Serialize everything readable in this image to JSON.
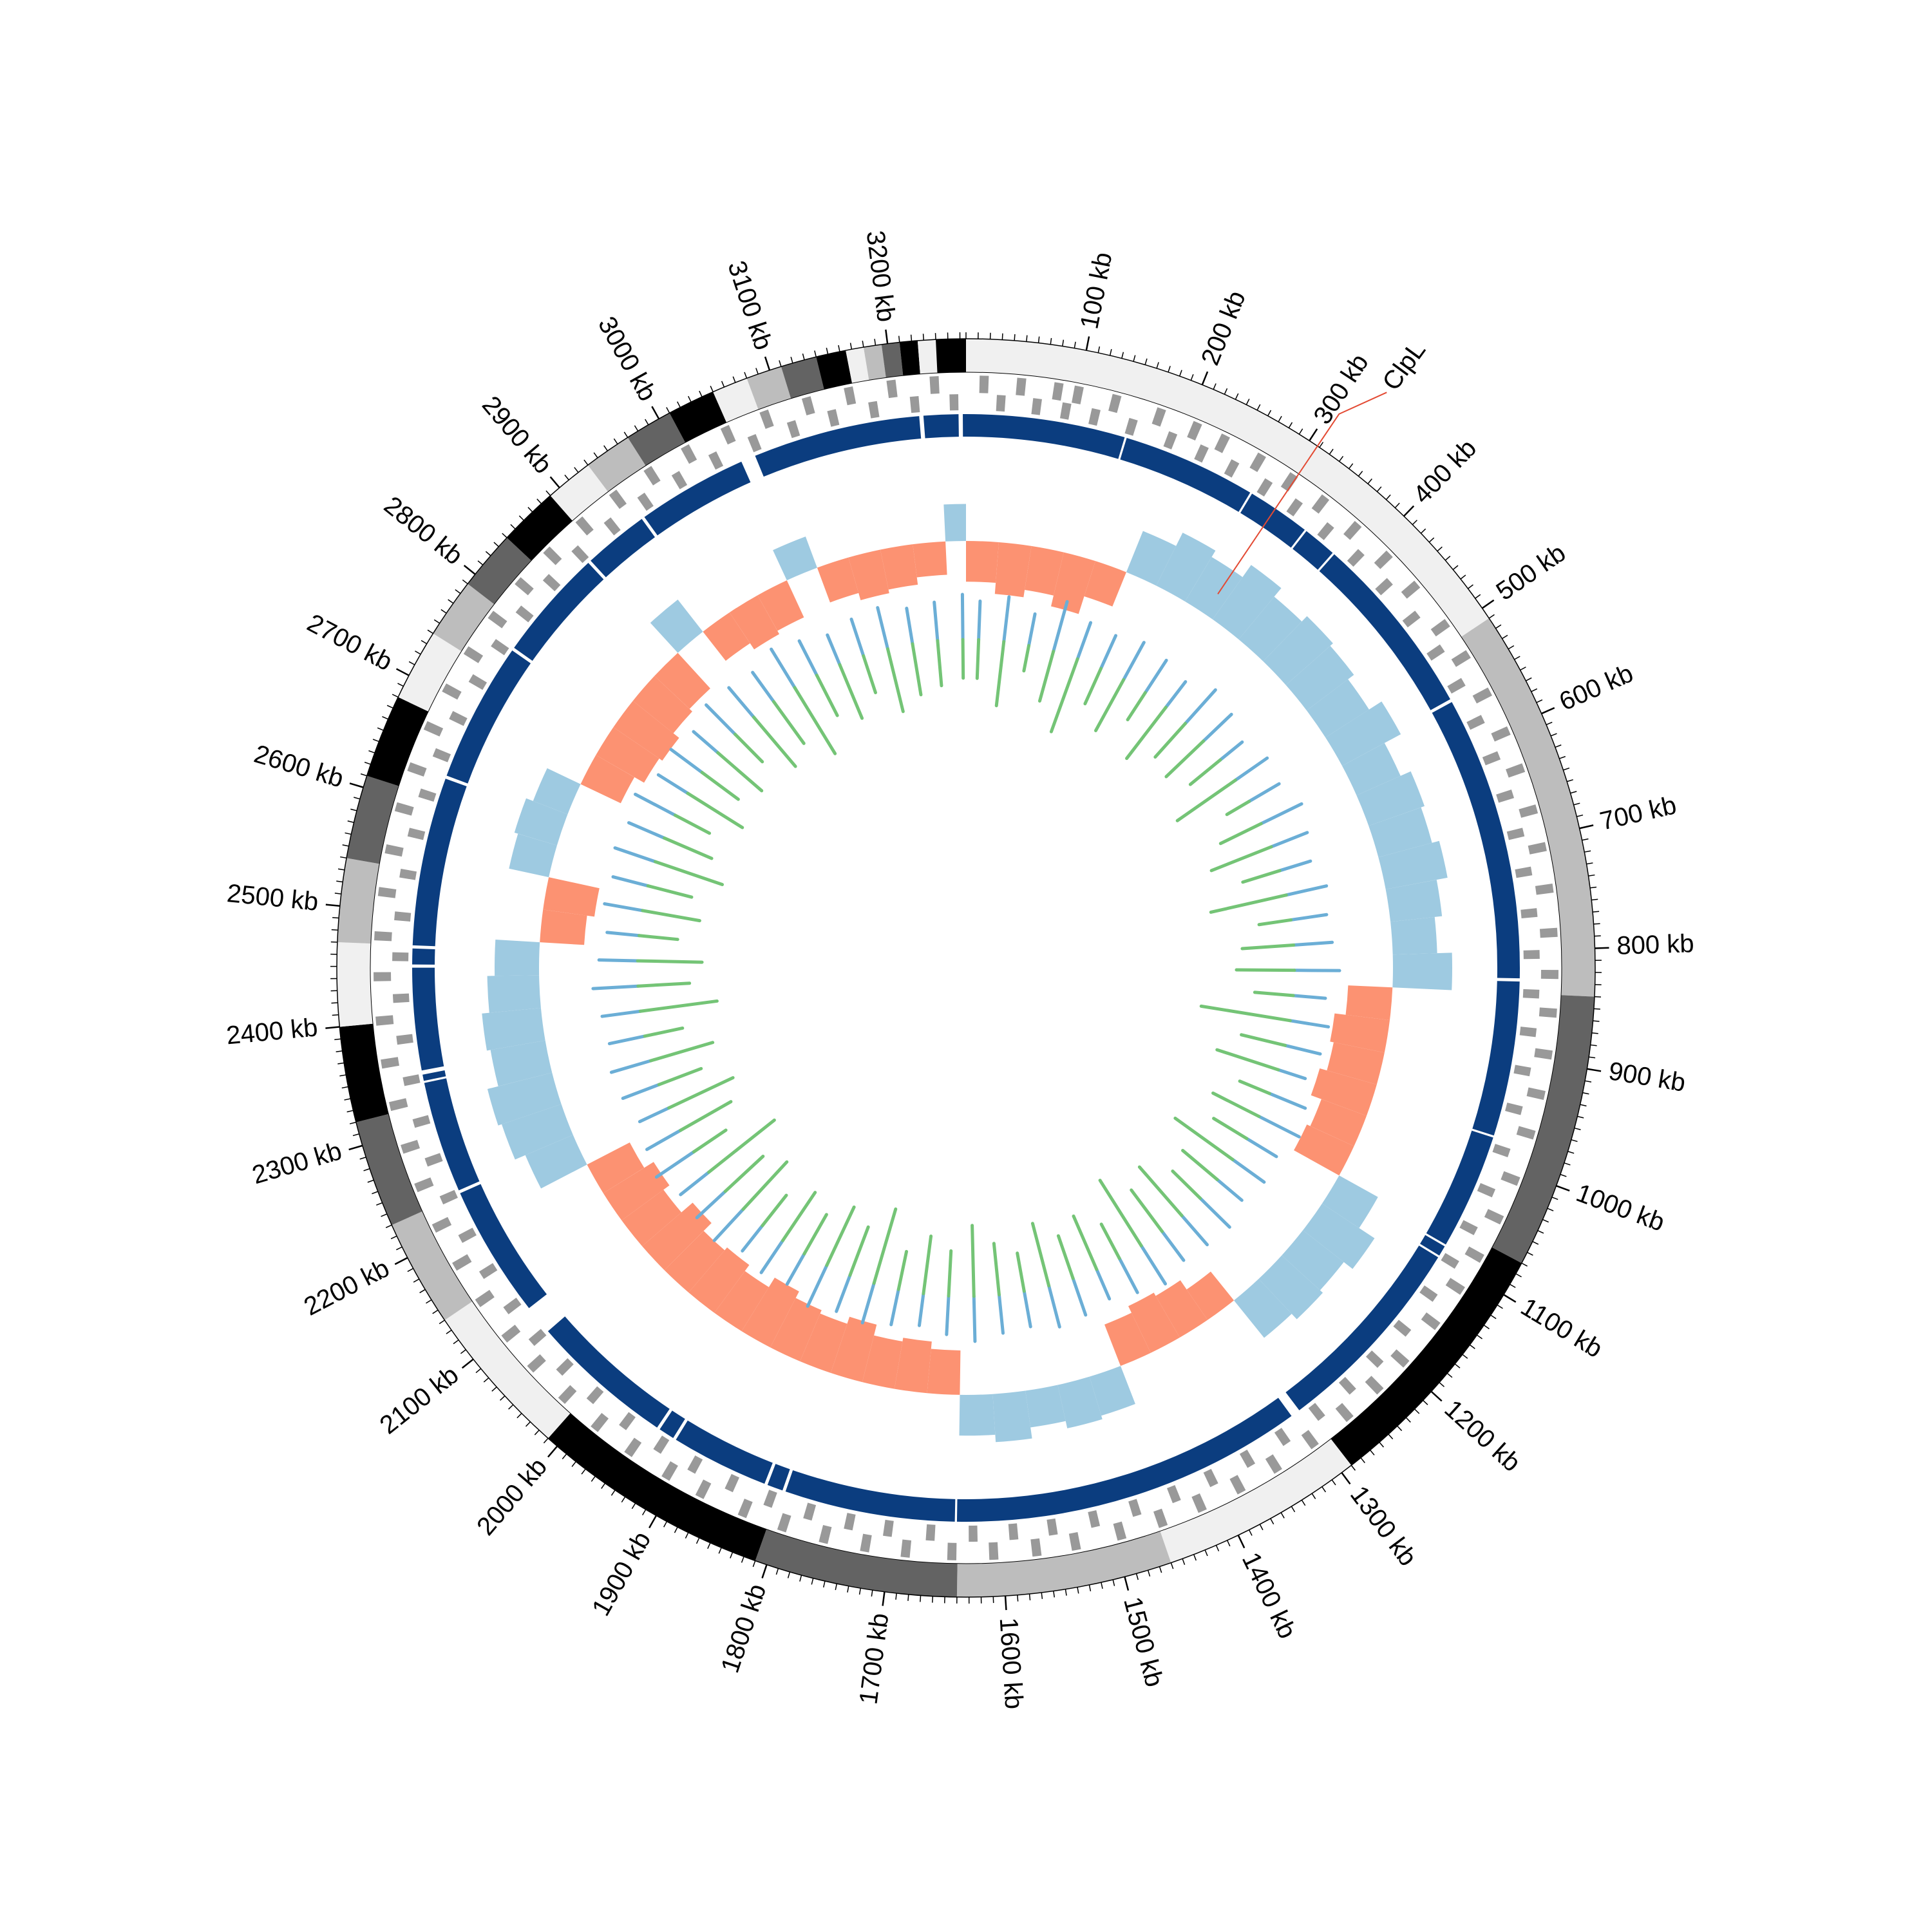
{
  "chart_data": {
    "type": "circos",
    "xlim": [
      0,
      3265
    ],
    "xticks": [
      {
        "value": 100,
        "label": "100 kb"
      },
      {
        "value": 200,
        "label": "200 kb"
      },
      {
        "value": 300,
        "label": "300 kb"
      },
      {
        "value": 400,
        "label": "400 kb"
      },
      {
        "value": 500,
        "label": "500 kb"
      },
      {
        "value": 600,
        "label": "600 kb"
      },
      {
        "value": 700,
        "label": "700 kb"
      },
      {
        "value": 800,
        "label": "800 kb"
      },
      {
        "value": 900,
        "label": "900 kb"
      },
      {
        "value": 1000,
        "label": "1000 kb"
      },
      {
        "value": 1100,
        "label": "1100 kb"
      },
      {
        "value": 1200,
        "label": "1200 kb"
      },
      {
        "value": 1300,
        "label": "1300 kb"
      },
      {
        "value": 1400,
        "label": "1400 kb"
      },
      {
        "value": 1500,
        "label": "1500 kb"
      },
      {
        "value": 1600,
        "label": "1600 kb"
      },
      {
        "value": 1700,
        "label": "1700 kb"
      },
      {
        "value": 1800,
        "label": "1800 kb"
      },
      {
        "value": 1900,
        "label": "1900 kb"
      },
      {
        "value": 2000,
        "label": "2000 kb"
      },
      {
        "value": 2100,
        "label": "2100 kb"
      },
      {
        "value": 2200,
        "label": "2200 kb"
      },
      {
        "value": 2300,
        "label": "2300 kb"
      },
      {
        "value": 2400,
        "label": "2400 kb"
      },
      {
        "value": 2500,
        "label": "2500 kb"
      },
      {
        "value": 2600,
        "label": "2600 kb"
      },
      {
        "value": 2700,
        "label": "2700 kb"
      },
      {
        "value": 2800,
        "label": "2800 kb"
      },
      {
        "value": 2900,
        "label": "2900 kb"
      },
      {
        "value": 3000,
        "label": "3000 kb"
      },
      {
        "value": 3100,
        "label": "3100 kb"
      },
      {
        "value": 3200,
        "label": "3200 kb"
      }
    ],
    "minor_tick_step": 10,
    "bands": [
      {
        "start": 0,
        "end": 510,
        "color": "#f0f0f0"
      },
      {
        "start": 510,
        "end": 840,
        "color": "#bdbdbd"
      },
      {
        "start": 840,
        "end": 1070,
        "color": "#636363"
      },
      {
        "start": 1070,
        "end": 1290,
        "color": "#000000"
      },
      {
        "start": 1290,
        "end": 1460,
        "color": "#f0f0f0"
      },
      {
        "start": 1460,
        "end": 1640,
        "color": "#bdbdbd"
      },
      {
        "start": 1640,
        "end": 1810,
        "color": "#636363"
      },
      {
        "start": 1810,
        "end": 2010,
        "color": "#000000"
      },
      {
        "start": 2010,
        "end": 2140,
        "color": "#f0f0f0"
      },
      {
        "start": 2140,
        "end": 2230,
        "color": "#bdbdbd"
      },
      {
        "start": 2230,
        "end": 2320,
        "color": "#636363"
      },
      {
        "start": 2320,
        "end": 2400,
        "color": "#000000"
      },
      {
        "start": 2400,
        "end": 2470,
        "color": "#f0f0f0"
      },
      {
        "start": 2470,
        "end": 2540,
        "color": "#bdbdbd"
      },
      {
        "start": 2540,
        "end": 2610,
        "color": "#636363"
      },
      {
        "start": 2610,
        "end": 2680,
        "color": "#000000"
      },
      {
        "start": 2680,
        "end": 2740,
        "color": "#f0f0f0"
      },
      {
        "start": 2740,
        "end": 2790,
        "color": "#bdbdbd"
      },
      {
        "start": 2790,
        "end": 2840,
        "color": "#636363"
      },
      {
        "start": 2840,
        "end": 2890,
        "color": "#000000"
      },
      {
        "start": 2890,
        "end": 2930,
        "color": "#f0f0f0"
      },
      {
        "start": 2930,
        "end": 2970,
        "color": "#bdbdbd"
      },
      {
        "start": 2970,
        "end": 3010,
        "color": "#636363"
      },
      {
        "start": 3010,
        "end": 3050,
        "color": "#000000"
      },
      {
        "start": 3050,
        "end": 3080,
        "color": "#f0f0f0"
      },
      {
        "start": 3080,
        "end": 3110,
        "color": "#bdbdbd"
      },
      {
        "start": 3110,
        "end": 3140,
        "color": "#636363"
      },
      {
        "start": 3140,
        "end": 3165,
        "color": "#000000"
      },
      {
        "start": 3165,
        "end": 3180,
        "color": "#f0f0f0"
      },
      {
        "start": 3180,
        "end": 3195,
        "color": "#bdbdbd"
      },
      {
        "start": 3195,
        "end": 3210,
        "color": "#636363"
      },
      {
        "start": 3210,
        "end": 3225,
        "color": "#000000"
      },
      {
        "start": 3225,
        "end": 3240,
        "color": "#f0f0f0"
      },
      {
        "start": 3240,
        "end": 3265,
        "color": "#000000"
      }
    ],
    "genes_color": "#999999",
    "genes_plus": [
      12,
      45,
      78,
      96,
      130,
      171,
      205,
      232,
      268,
      301,
      335,
      372,
      410,
      446,
      489,
      522,
      560,
      598,
      633,
      671,
      705,
      742,
      781,
      818,
      852,
      889,
      925,
      961,
      1004,
      1041,
      1079,
      1112,
      1150,
      1193,
      1226,
      1262,
      1301,
      1340,
      1377,
      1415,
      1452,
      1490,
      1531,
      1566,
      1604,
      1641,
      1682,
      1718,
      1755,
      1793,
      1830,
      1871,
      1905,
      1944,
      1981,
      2019,
      2058,
      2093,
      2132,
      2170,
      2208,
      2247,
      2283,
      2322,
      2360,
      2398,
      2437,
      2473,
      2512,
      2550,
      2588,
      2625,
      2664,
      2701,
      2739,
      2777,
      2815,
      2852,
      2891,
      2929,
      2966,
      3004,
      3043,
      3080,
      3119,
      3157,
      3195,
      3233
    ],
    "genes_minus": [
      28,
      61,
      88,
      115,
      150,
      188,
      219,
      250,
      285,
      318,
      354,
      391,
      428,
      467,
      505,
      541,
      579,
      615,
      652,
      688,
      724,
      762,
      800,
      836,
      871,
      907,
      943,
      983,
      1022,
      1060,
      1095,
      1131,
      1171,
      1209,
      1244,
      1281,
      1320,
      1358,
      1396,
      1433,
      1471,
      1510,
      1549,
      1585,
      1622,
      1661,
      1700,
      1736,
      1774,
      1812,
      1850,
      1888,
      1924,
      1962,
      2000,
      2038,
      2075,
      2112,
      2151,
      2189,
      2228,
      2265,
      2302,
      2341,
      2379,
      2417,
      2455,
      2492,
      2531,
      2569,
      2606,
      2645,
      2682,
      2720,
      2758,
      2796,
      2834,
      2871,
      2910,
      2948,
      2985,
      3023,
      3062,
      3100,
      3138,
      3176,
      3214,
      3250
    ],
    "contig_color": "#0b3d7f",
    "contigs": [
      [
        0,
        151
      ],
      [
        153,
        280
      ],
      [
        282,
        342
      ],
      [
        344,
        376
      ],
      [
        378,
        553
      ],
      [
        556,
        826
      ],
      [
        829,
        976
      ],
      [
        978,
        1088
      ],
      [
        1090,
        1100
      ],
      [
        1102,
        1297
      ],
      [
        1306,
        1641
      ],
      [
        1643,
        1805
      ],
      [
        1808,
        1823
      ],
      [
        1826,
        1919
      ],
      [
        1922,
        1937
      ],
      [
        1940,
        2077
      ],
      [
        2105,
        2231
      ],
      [
        2234,
        2340
      ],
      [
        2342,
        2348
      ],
      [
        2352,
        2449
      ],
      [
        2452,
        2467
      ],
      [
        2470,
        2630
      ],
      [
        2633,
        2766
      ],
      [
        2769,
        2875
      ],
      [
        2878,
        2940
      ],
      [
        2943,
        3048
      ],
      [
        3062,
        3221
      ],
      [
        3225,
        3258
      ],
      [
        3262,
        3265
      ]
    ],
    "bin_size": 40,
    "gc_colors": {
      "positive": "#9ecae1",
      "negative": "#fc9272"
    },
    "gc_values": [
      -0.55,
      -0.7,
      -0.6,
      -0.75,
      -0.5,
      0.6,
      0.8,
      0.7,
      0.9,
      0.75,
      0.85,
      0.8,
      0.7,
      0.9,
      0.65,
      0.8,
      0.75,
      0.85,
      0.7,
      0.6,
      0.8,
      -0.6,
      -0.75,
      -0.7,
      -0.8,
      -0.65,
      -0.7,
      0.6,
      0.85,
      0.7,
      0.75,
      0.65,
      -0.5,
      -0.65,
      -0.7,
      -0.6,
      0.55,
      0.6,
      0.5,
      0.65,
      0.55,
      -0.6,
      -0.7,
      -0.65,
      -0.8,
      -0.7,
      -0.75,
      -0.85,
      -0.7,
      -0.8,
      -0.75,
      -0.9,
      -0.7,
      -0.8,
      -0.65,
      0.7,
      0.85,
      0.9,
      0.75,
      0.8,
      0.7,
      0.6,
      -0.6,
      -0.7,
      0.55,
      0.6,
      0.5,
      -0.6,
      -0.75,
      -0.8,
      -0.7,
      -0.65,
      0.55,
      -0.5,
      -0.6,
      -0.55,
      0.45,
      -0.5,
      -0.6,
      -0.55,
      -0.45,
      0.5
    ],
    "skew_series": [
      {
        "color": "#6baed6",
        "values": [
          0.3,
          0.35,
          0.25,
          0.4,
          0.3,
          0.28,
          0.33,
          0.3,
          0.25,
          0.35,
          0.3,
          0.22,
          0.3,
          0.27,
          0.35,
          0.3,
          0.25,
          0.32,
          0.28,
          0.3,
          0.35,
          0.25,
          0.3,
          0.28,
          0.22,
          0.3,
          0.35,
          0.27,
          0.3,
          0.25,
          0.32,
          0.3,
          0.28,
          0.35,
          0.3,
          0.25,
          0.3,
          0.33,
          0.28,
          0.3,
          0.35,
          0.3,
          0.25,
          0.28,
          0.32,
          0.3,
          0.35,
          0.27,
          0.3,
          0.25,
          0.33,
          0.3,
          0.28,
          0.35,
          0.3,
          0.25,
          0.3,
          0.32,
          0.28,
          0.3,
          0.35,
          0.3,
          0.25,
          0.3,
          0.28,
          0.33,
          0.3,
          0.35,
          0.27,
          0.3,
          0.25,
          0.32,
          0.3,
          0.28,
          0.35,
          0.3,
          0.25,
          0.3,
          0.33,
          0.28,
          0.3,
          0.35
        ]
      },
      {
        "color": "#74c476",
        "values": [
          -0.3,
          -0.5,
          -0.2,
          -0.4,
          -0.6,
          -0.3,
          -0.45,
          -0.25,
          -0.5,
          -0.35,
          -0.4,
          -0.3,
          -0.55,
          -0.2,
          -0.35,
          -0.5,
          -0.3,
          -0.6,
          -0.25,
          -0.4,
          -0.45,
          -0.3,
          -0.7,
          -0.35,
          -0.5,
          -0.25,
          -0.4,
          -0.3,
          -0.55,
          -0.35,
          -0.3,
          -0.5,
          -0.4,
          -0.6,
          -0.3,
          -0.45,
          -0.35,
          -0.5,
          -0.3,
          -0.4,
          -0.55,
          -0.35,
          -0.45,
          -0.3,
          -0.6,
          -0.4,
          -0.5,
          -0.35,
          -0.45,
          -0.3,
          -0.5,
          -0.4,
          -0.65,
          -0.3,
          -0.45,
          -0.55,
          -0.35,
          -0.5,
          -0.3,
          -0.6,
          -0.4,
          -0.5,
          -0.3,
          -0.45,
          -0.35,
          -0.55,
          -0.4,
          -0.3,
          -0.5,
          -0.35,
          -0.45,
          -0.3,
          -0.5,
          -0.4,
          -0.6,
          -0.35,
          -0.45,
          -0.3,
          -0.5,
          -0.4,
          -0.35,
          -0.3
        ]
      }
    ],
    "annotations": [
      {
        "label": "ClpL",
        "position": 308,
        "color": "#1f6fb4",
        "line_color": "#e34a33"
      }
    ]
  }
}
